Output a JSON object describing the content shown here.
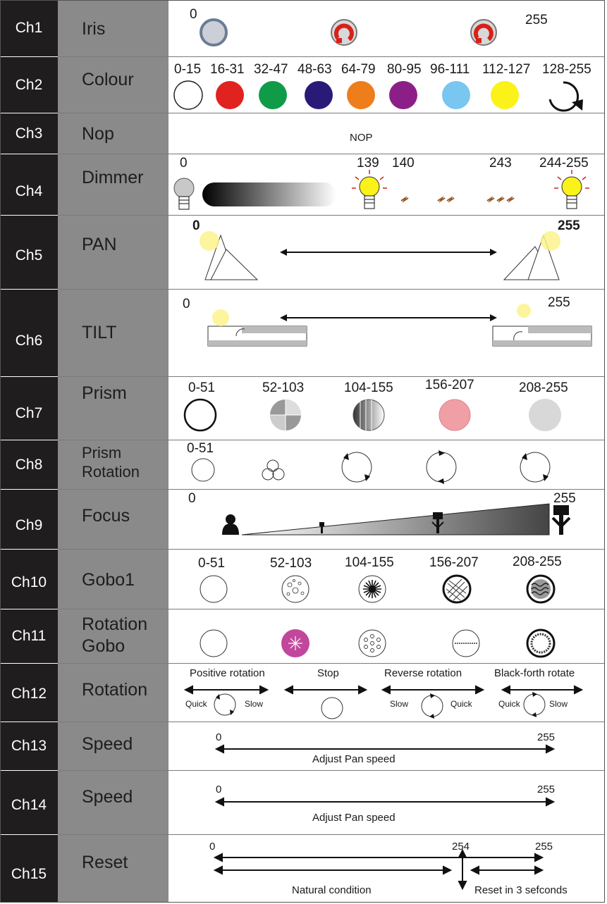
{
  "rows": [
    {
      "ch": "Ch1",
      "fn": "Iris",
      "labels": [
        "0",
        "255"
      ]
    },
    {
      "ch": "Ch2",
      "fn": "Colour",
      "labels": [
        "0-15",
        "16-31",
        "32-47",
        "48-63",
        "64-79",
        "80-95",
        "96-111",
        "112-127",
        "128-255"
      ]
    },
    {
      "ch": "Ch3",
      "fn": "Nop",
      "labels": [
        "NOP"
      ]
    },
    {
      "ch": "Ch4",
      "fn": "Dimmer",
      "labels": [
        "0",
        "139",
        "140",
        "243",
        "244-255"
      ]
    },
    {
      "ch": "Ch5",
      "fn": "PAN",
      "labels": [
        "0",
        "255"
      ]
    },
    {
      "ch": "Ch6",
      "fn": "TILT",
      "labels": [
        "0",
        "255"
      ]
    },
    {
      "ch": "Ch7",
      "fn": "Prism",
      "labels": [
        "0-51",
        "52-103",
        "104-155",
        "156-207",
        "208-255"
      ]
    },
    {
      "ch": "Ch8",
      "fn1": "Prism",
      "fn2": "Rotation",
      "labels": [
        "0-51"
      ]
    },
    {
      "ch": "Ch9",
      "fn": "Focus",
      "labels": [
        "0",
        "255"
      ]
    },
    {
      "ch": "Ch10",
      "fn": "Gobo1",
      "labels": [
        "0-51",
        "52-103",
        "104-155",
        "156-207",
        "208-255"
      ]
    },
    {
      "ch": "Ch11",
      "fn1": "Rotation",
      "fn2": "Gobo",
      "labels": []
    },
    {
      "ch": "Ch12",
      "fn": "Rotation",
      "labels": [
        "Positive rotation",
        "Stop",
        "Reverse rotation",
        "Black-forth rotate"
      ],
      "small": [
        "Quick",
        "Slow",
        "Slow",
        "Quick",
        "Quick",
        "Slow"
      ]
    },
    {
      "ch": "Ch13",
      "fn": "Speed",
      "labels": [
        "0",
        "255"
      ],
      "caption": "Adjust Pan speed"
    },
    {
      "ch": "Ch14",
      "fn": "Speed",
      "labels": [
        "0",
        "255"
      ],
      "caption": "Adjust Pan speed"
    },
    {
      "ch": "Ch15",
      "fn": "Reset",
      "labels": [
        "0",
        "254",
        "255"
      ],
      "captions": [
        "Natural condition",
        "Reset in 3 sefconds"
      ]
    }
  ],
  "colours": {
    "channel_bg": "#1f1d1d",
    "function_bg": "#8a8a8a",
    "colour_wheel": [
      "#ffffff",
      "#e0231f",
      "#109b48",
      "#2a1a78",
      "#ee7d1c",
      "#8b1f87",
      "#79c6f0",
      "#fbf21a"
    ],
    "prism_pink": "#f0a0a4",
    "gobo_magenta": "#c1479c"
  },
  "icons": {
    "ch1": [
      "iris-open-icon",
      "iris-closing-icon",
      "iris-closing-icon"
    ],
    "ch4": [
      "bulb-off-icon",
      "dimmer-gradient-icon",
      "bulb-on-icon",
      "strobe-slow-icon",
      "strobe-medium-icon",
      "strobe-fast-icon",
      "bulb-on-icon"
    ],
    "ch9": [
      "focus-person-icon",
      "focus-tree-small-icon",
      "focus-tree-medium-icon",
      "focus-tree-large-icon"
    ]
  }
}
